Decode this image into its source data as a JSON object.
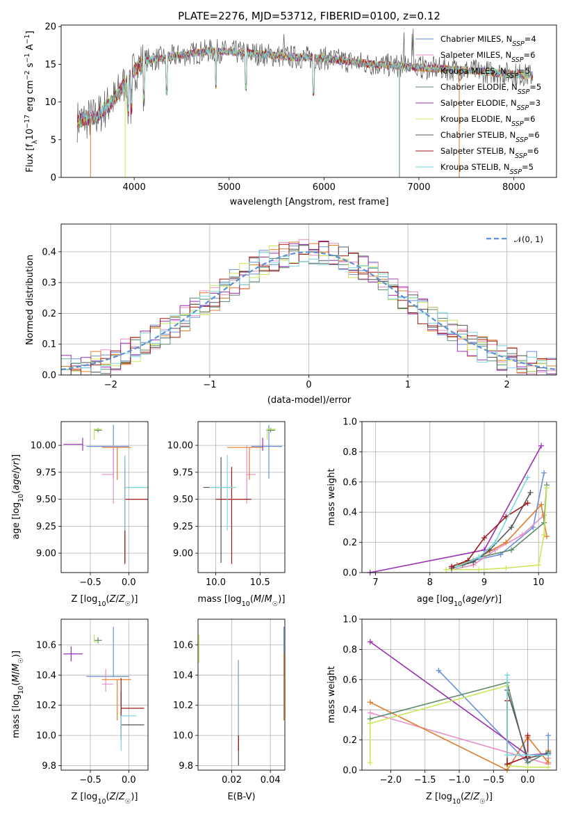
{
  "colors": [
    "#6a8edb",
    "#e88fc5",
    "#e07c2a",
    "#5e8a6a",
    "#9b2fb2",
    "#c8e85a",
    "#555555",
    "#a01818",
    "#7ad6df"
  ],
  "chart_data": [
    {
      "id": "spectrum",
      "type": "line",
      "title": "PLATE=2276, MJD=53712, FIBERID=0100, z=0.12",
      "xlabel": "wavelength [Angstrom, rest frame]",
      "ylabel": "Flux [f",
      "ylabel_parts": [
        "Flux [f",
        "λ",
        "10",
        "−17",
        " erg cm",
        "−2",
        " s",
        "−1",
        " A",
        "−1",
        "]"
      ],
      "xlim": [
        3230,
        8450
      ],
      "ylim": [
        0,
        20.2
      ],
      "xticks": [
        4000,
        5000,
        6000,
        7000,
        8000
      ],
      "yticks": [
        0,
        5,
        10,
        15,
        20
      ],
      "grid": false,
      "legend_position": "top-right",
      "legend": [
        {
          "name": "Chabrier MILES, N",
          "sub": "SSP",
          "n": "=4"
        },
        {
          "name": "Salpeter MILES, N",
          "sub": "SSP",
          "n": "=6"
        },
        {
          "name": "Kroupa MILES, N",
          "sub": "SSP",
          "n": "=5"
        },
        {
          "name": "Chabrier ELODIE, N",
          "sub": "SSP",
          "n": "=5"
        },
        {
          "name": "Salpeter ELODIE, N",
          "sub": "SSP",
          "n": "=3"
        },
        {
          "name": "Kroupa ELODIE, N",
          "sub": "SSP",
          "n": "=6"
        },
        {
          "name": "Chabrier STELIB, N",
          "sub": "SSP",
          "n": "=6"
        },
        {
          "name": "Salpeter STELIB, N",
          "sub": "SSP",
          "n": "=6"
        },
        {
          "name": "Kroupa STELIB, N",
          "sub": "SSP",
          "n": "=5"
        }
      ],
      "continuum": [
        [
          3400,
          7.5
        ],
        [
          3600,
          8.0
        ],
        [
          3800,
          10.5
        ],
        [
          3950,
          13.5
        ],
        [
          4100,
          15.5
        ],
        [
          4400,
          16.0
        ],
        [
          4800,
          16.8
        ],
        [
          5200,
          16.5
        ],
        [
          5600,
          16.0
        ],
        [
          6000,
          15.8
        ],
        [
          6500,
          15.0
        ],
        [
          7000,
          14.6
        ],
        [
          7500,
          14.2
        ],
        [
          8200,
          13.5
        ]
      ]
    },
    {
      "id": "residuals",
      "type": "histogram",
      "xlabel": "(data-model)/error",
      "ylabel": "Normed distribution",
      "xlim": [
        -2.5,
        2.5
      ],
      "ylim": [
        0,
        0.49
      ],
      "xticks": [
        -2,
        -1,
        0,
        1,
        2
      ],
      "yticks": [
        0.0,
        0.1,
        0.2,
        0.3,
        0.4
      ],
      "grid": true,
      "legend_position": "top-right",
      "legend": [
        "𝒩(0, 1)"
      ],
      "bin_width": 0.1,
      "curve": "normal(0,1)"
    },
    {
      "id": "age-vs-Z",
      "type": "errorbar",
      "xlabel": "Z [log",
      "ylabel": "age  [log",
      "xlim": [
        -0.88,
        0.25
      ],
      "ylim": [
        8.82,
        10.22
      ],
      "xticks": [
        -0.5,
        0.0
      ],
      "yticks": [
        9.0,
        9.25,
        9.5,
        9.75,
        10.0
      ],
      "grid": true,
      "points": [
        {
          "x": -0.2,
          "xe": [
            0.35,
            0.2
          ],
          "y": 9.99,
          "ye": [
            0.3,
            0.2
          ]
        },
        {
          "x": -0.2,
          "xe": [
            0.15,
            0.0
          ],
          "y": 9.73,
          "ye": [
            0.27,
            0.27
          ]
        },
        {
          "x": -0.15,
          "xe": [
            0.2,
            0.18
          ],
          "y": 9.98,
          "ye": [
            0.3,
            0.0
          ]
        },
        {
          "x": -0.4,
          "xe": [
            0.05,
            0.05
          ],
          "y": 10.14,
          "ye": [
            0.02,
            0.02
          ]
        },
        {
          "x": -0.6,
          "xe": [
            0.25,
            0.0
          ],
          "y": 10.01,
          "ye": [
            0.06,
            0.06
          ]
        },
        {
          "x": -0.45,
          "xe": [
            0.0,
            0.1
          ],
          "y": 10.15,
          "ye": [
            0.1,
            0.0
          ]
        },
        {
          "x": -0.05,
          "xe": [
            0.0,
            0.3
          ],
          "y": 9.61,
          "ye": [
            0.7,
            0.28
          ]
        },
        {
          "x": -0.05,
          "xe": [
            0.0,
            0.3
          ],
          "y": 9.5,
          "ye": [
            0.6,
            0.3
          ]
        },
        {
          "x": -0.05,
          "xe": [
            0.0,
            0.3
          ],
          "y": 9.61,
          "ye": [
            0.4,
            0.3
          ]
        }
      ]
    },
    {
      "id": "age-vs-mass",
      "type": "errorbar",
      "xlabel": "mass [log",
      "ylabel": "",
      "xlim": [
        9.8,
        10.78
      ],
      "ylim": [
        8.82,
        10.22
      ],
      "xticks": [
        10.0,
        10.5
      ],
      "yticks": [
        9.0,
        9.25,
        9.5,
        9.75,
        10.0
      ],
      "grid": true,
      "points": [
        {
          "x": 10.6,
          "xe": [
            0.2,
            0.15
          ],
          "y": 9.99,
          "ye": [
            0.3,
            0.2
          ]
        },
        {
          "x": 10.35,
          "xe": [
            0.0,
            0.1
          ],
          "y": 9.73,
          "ye": [
            0.27,
            0.27
          ]
        },
        {
          "x": 10.38,
          "xe": [
            0.25,
            0.15
          ],
          "y": 9.98,
          "ye": [
            0.3,
            0.0
          ]
        },
        {
          "x": 10.62,
          "xe": [
            0.05,
            0.05
          ],
          "y": 10.14,
          "ye": [
            0.02,
            0.02
          ]
        },
        {
          "x": 10.53,
          "xe": [
            0.0,
            0.0
          ],
          "y": 10.01,
          "ye": [
            0.06,
            0.06
          ]
        },
        {
          "x": 10.58,
          "xe": [
            0.0,
            0.1
          ],
          "y": 10.15,
          "ye": [
            0.1,
            0.0
          ]
        },
        {
          "x": 10.06,
          "xe": [
            0.2,
            0.12
          ],
          "y": 9.61,
          "ye": [
            0.7,
            0.28
          ]
        },
        {
          "x": 10.18,
          "xe": [
            0.18,
            0.22
          ],
          "y": 9.5,
          "ye": [
            0.6,
            0.3
          ]
        },
        {
          "x": 10.13,
          "xe": [
            0.2,
            0.1
          ],
          "y": 9.61,
          "ye": [
            0.4,
            0.3
          ]
        }
      ]
    },
    {
      "id": "weight-vs-age",
      "type": "line",
      "xlabel": "age  [log",
      "ylabel": "mass weight",
      "xlim": [
        6.75,
        10.33
      ],
      "ylim": [
        0,
        1.0
      ],
      "xticks": [
        7,
        8,
        9,
        10
      ],
      "yticks": [
        0.0,
        0.2,
        0.4,
        0.6,
        0.8,
        1.0
      ],
      "grid": true,
      "series": [
        {
          "x": [
            8.5,
            8.8,
            9.3,
            9.9,
            10.1
          ],
          "y": [
            0.05,
            0.08,
            0.12,
            0.3,
            0.66
          ]
        },
        {
          "x": [
            8.4,
            8.8,
            9.2,
            9.7,
            10.1
          ],
          "y": [
            0.02,
            0.05,
            0.15,
            0.25,
            0.38
          ]
        },
        {
          "x": [
            8.5,
            8.9,
            9.4,
            10.05,
            10.15
          ],
          "y": [
            0.05,
            0.1,
            0.2,
            0.45,
            0.24
          ]
        },
        {
          "x": [
            8.6,
            8.9,
            9.5,
            10.1,
            10.15
          ],
          "y": [
            0.05,
            0.1,
            0.15,
            0.33,
            0.58
          ]
        },
        {
          "x": [
            6.9,
            9.0,
            10.05
          ],
          "y": [
            0.0,
            0.15,
            0.84
          ]
        },
        {
          "x": [
            8.3,
            8.9,
            9.4,
            10.0,
            10.1,
            10.15
          ],
          "y": [
            0.02,
            0.02,
            0.03,
            0.05,
            0.25,
            0.56
          ]
        },
        {
          "x": [
            8.4,
            8.8,
            9.1,
            9.5,
            9.85
          ],
          "y": [
            0.03,
            0.07,
            0.15,
            0.3,
            0.53
          ]
        },
        {
          "x": [
            8.4,
            8.7,
            9.0,
            9.4,
            9.8
          ],
          "y": [
            0.04,
            0.08,
            0.23,
            0.37,
            0.46
          ]
        },
        {
          "x": [
            8.5,
            8.9,
            9.2,
            9.8
          ],
          "y": [
            0.04,
            0.1,
            0.2,
            0.63
          ]
        }
      ]
    },
    {
      "id": "mass-vs-Z",
      "type": "errorbar",
      "xlabel": "Z [log",
      "ylabel": "mass [log",
      "xlim": [
        -0.88,
        0.25
      ],
      "ylim": [
        9.77,
        10.77
      ],
      "xticks": [
        -0.5,
        0.0
      ],
      "yticks": [
        9.8,
        10.0,
        10.2,
        10.4,
        10.6
      ],
      "grid": true,
      "points": [
        {
          "x": -0.2,
          "xe": [
            0.35,
            0.2
          ],
          "y": 10.39,
          "ye": [
            0.0,
            0.33
          ]
        },
        {
          "x": -0.3,
          "xe": [
            0.05,
            0.1
          ],
          "y": 10.34,
          "ye": [
            0.05,
            0.1
          ]
        },
        {
          "x": -0.15,
          "xe": [
            0.2,
            0.18
          ],
          "y": 10.37,
          "ye": [
            0.27,
            0.0
          ]
        },
        {
          "x": -0.4,
          "xe": [
            0.05,
            0.05
          ],
          "y": 10.63,
          "ye": [
            0.02,
            0.02
          ]
        },
        {
          "x": -0.75,
          "xe": [
            0.1,
            0.15
          ],
          "y": 10.54,
          "ye": [
            0.05,
            0.05
          ]
        },
        {
          "x": -0.45,
          "xe": [
            0.0,
            0.05
          ],
          "y": 10.62,
          "ye": [
            0.0,
            0.05
          ]
        },
        {
          "x": -0.1,
          "xe": [
            0.0,
            0.3
          ],
          "y": 10.07,
          "ye": [
            0.1,
            0.22
          ]
        },
        {
          "x": -0.1,
          "xe": [
            0.0,
            0.3
          ],
          "y": 10.18,
          "ye": [
            0.2,
            0.2
          ]
        },
        {
          "x": -0.1,
          "xe": [
            0.0,
            0.2
          ],
          "y": 10.13,
          "ye": [
            0.23,
            0.0
          ]
        }
      ]
    },
    {
      "id": "mass-vs-EBV",
      "type": "errorbar",
      "xlabel": "E(B-V)",
      "ylabel": "",
      "xlim": [
        0.0025,
        0.0475
      ],
      "ylim": [
        9.77,
        10.77
      ],
      "xticks": [
        0.02,
        0.04
      ],
      "yticks": [
        9.8,
        10.0,
        10.2,
        10.4,
        10.6
      ],
      "grid": true,
      "points": [
        {
          "x": 0.047,
          "y": 10.6,
          "ye": [
            0.2,
            0.12
          ]
        },
        {
          "x": 0.0235,
          "y": 10.4,
          "ye": [
            0.5,
            0.1
          ]
        },
        {
          "x": 0.047,
          "y": 10.4,
          "ye": [
            0.3,
            0.15
          ]
        },
        {
          "x": 0.0235,
          "y": 10.2,
          "ye": [
            0.3,
            0.25
          ]
        },
        {
          "x": 0.0235,
          "y": 10.42,
          "ye": [
            0.08,
            0.08
          ]
        },
        {
          "x": 0.003,
          "y": 10.6,
          "ye": [
            0.12,
            0.07
          ]
        },
        {
          "x": 0.0235,
          "y": 10.3,
          "ye": [
            0.5,
            0.2
          ]
        },
        {
          "x": 0.0235,
          "y": 10.3,
          "ye": [
            0.4,
            0.2
          ]
        },
        {
          "x": 0.0235,
          "y": 10.3,
          "ye": [
            0.3,
            0.2
          ]
        }
      ]
    },
    {
      "id": "weight-vs-Z",
      "type": "line",
      "xlabel": "Z [log",
      "ylabel": "mass weight",
      "xlim": [
        -2.42,
        0.42
      ],
      "ylim": [
        0,
        1.0
      ],
      "xticks": [
        -2.0,
        -1.5,
        -1.0,
        -0.5,
        0.0
      ],
      "yticks": [
        0.0,
        0.2,
        0.4,
        0.6,
        0.8,
        1.0
      ],
      "grid": true,
      "series": [
        {
          "x": [
            -1.3,
            0.0,
            0.3,
            0.3
          ],
          "y": [
            0.66,
            0.05,
            0.12,
            0.23
          ]
        },
        {
          "x": [
            -2.3,
            0.3,
            0.3
          ],
          "y": [
            0.38,
            0.04,
            0.08
          ]
        },
        {
          "x": [
            -2.3,
            -0.3,
            0.0,
            0.3,
            0.3
          ],
          "y": [
            0.45,
            0.0,
            0.22,
            0.05,
            0.13
          ]
        },
        {
          "x": [
            -2.3,
            -0.3,
            0.0,
            0.3
          ],
          "y": [
            0.34,
            0.58,
            0.05,
            0.12
          ]
        },
        {
          "x": [
            -2.3,
            0.0,
            0.3
          ],
          "y": [
            0.85,
            0.1,
            0.11
          ]
        },
        {
          "x": [
            -2.3,
            -2.3,
            -0.3,
            -0.3,
            0.0,
            0.3
          ],
          "y": [
            0.05,
            0.31,
            0.56,
            0.03,
            0.02,
            0.02
          ]
        },
        {
          "x": [
            -0.3,
            0.0,
            0.3
          ],
          "y": [
            0.53,
            0.08,
            0.11
          ]
        },
        {
          "x": [
            -0.3,
            -0.3,
            0.0,
            0.0
          ],
          "y": [
            0.46,
            0.04,
            0.09,
            0.23
          ]
        },
        {
          "x": [
            -0.3,
            -0.3,
            0.0,
            0.3
          ],
          "y": [
            0.63,
            0.1,
            0.1,
            0.1
          ]
        }
      ]
    }
  ]
}
